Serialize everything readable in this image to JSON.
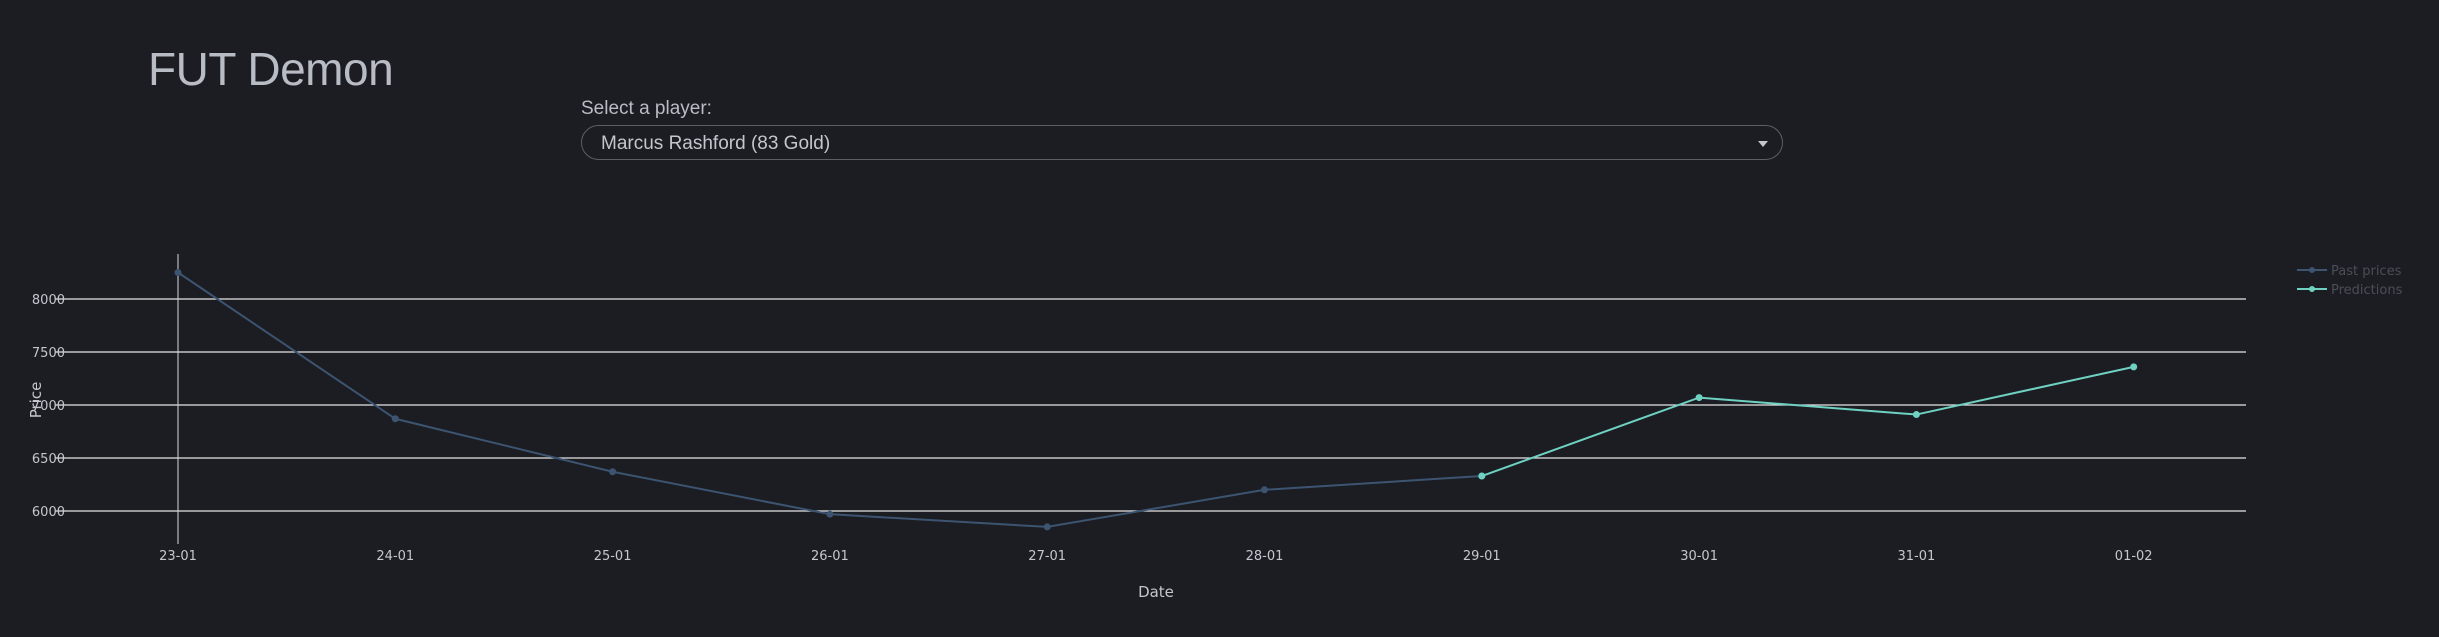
{
  "app": {
    "title": "FUT Demon"
  },
  "selector": {
    "label": "Select a player:",
    "selected": "Marcus Rashford (83 Gold)"
  },
  "chart_data": {
    "type": "line",
    "xlabel": "Date",
    "ylabel": "Price",
    "categories": [
      "23-01",
      "24-01",
      "25-01",
      "26-01",
      "27-01",
      "28-01",
      "29-01",
      "30-01",
      "31-01",
      "01-02"
    ],
    "ylim": [
      5800,
      8400
    ],
    "yticks": [
      6000,
      6500,
      7000,
      7500,
      8000
    ],
    "grid": true,
    "legend_position": "top-right",
    "series": [
      {
        "name": "Past prices",
        "color": "#3c5470",
        "points": [
          {
            "x": "23-01",
            "y": 8250
          },
          {
            "x": "24-01",
            "y": 6870
          },
          {
            "x": "25-01",
            "y": 6370
          },
          {
            "x": "26-01",
            "y": 5970
          },
          {
            "x": "27-01",
            "y": 5850
          },
          {
            "x": "28-01",
            "y": 6200
          },
          {
            "x": "29-01",
            "y": 6330
          }
        ]
      },
      {
        "name": "Predictions",
        "color": "#6fd1c1",
        "points": [
          {
            "x": "29-01",
            "y": 6330
          },
          {
            "x": "30-01",
            "y": 7070
          },
          {
            "x": "31-01",
            "y": 6910
          },
          {
            "x": "01-02",
            "y": 7360
          }
        ]
      }
    ]
  }
}
